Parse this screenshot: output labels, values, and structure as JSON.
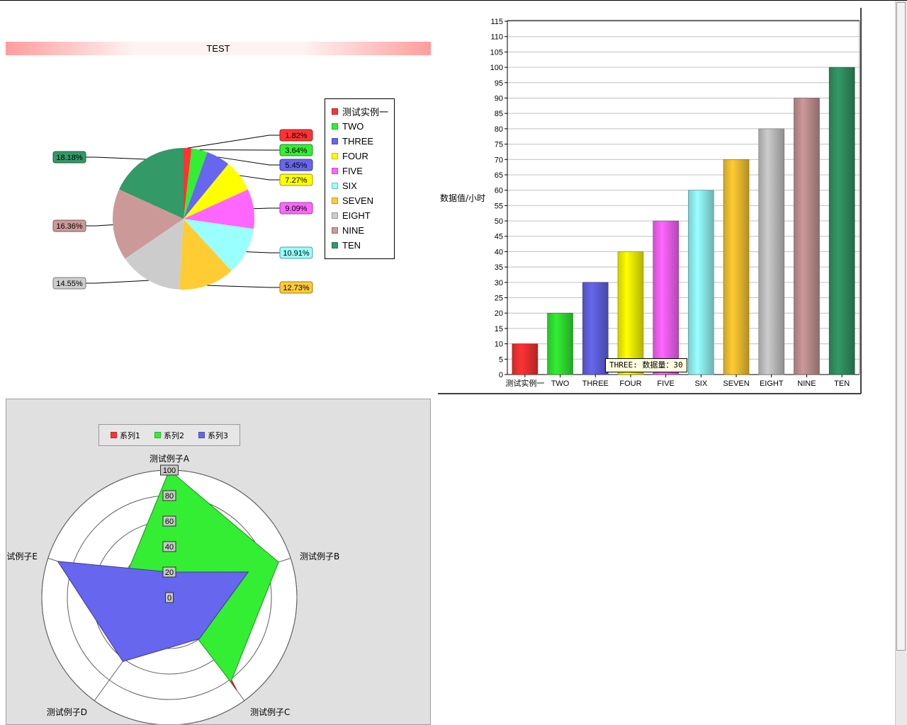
{
  "chart_data": [
    {
      "type": "pie",
      "title": "TEST",
      "legend_position": "right",
      "slices": [
        {
          "name": "测试实例一",
          "value": 1.82,
          "label": "1.82%",
          "color": "#ff3333"
        },
        {
          "name": "TWO",
          "value": 3.64,
          "label": "3.64%",
          "color": "#33ee33"
        },
        {
          "name": "THREE",
          "value": 5.45,
          "label": "5.45%",
          "color": "#6666ee"
        },
        {
          "name": "FOUR",
          "value": 7.27,
          "label": "7.27%",
          "color": "#ffff00"
        },
        {
          "name": "FIVE",
          "value": 9.09,
          "label": "9.09%",
          "color": "#ff66ff"
        },
        {
          "name": "SIX",
          "value": 10.91,
          "label": "10.91%",
          "color": "#99ffff"
        },
        {
          "name": "SEVEN",
          "value": 12.73,
          "label": "12.73%",
          "color": "#ffcc33"
        },
        {
          "name": "EIGHT",
          "value": 14.55,
          "label": "14.55%",
          "color": "#cccccc"
        },
        {
          "name": "NINE",
          "value": 16.36,
          "label": "16.36%",
          "color": "#cc9999"
        },
        {
          "name": "TEN",
          "value": 18.18,
          "label": "18.18%",
          "color": "#339966"
        }
      ]
    },
    {
      "type": "bar",
      "categories": [
        "测试实例一",
        "TWO",
        "THREE",
        "FOUR",
        "FIVE",
        "SIX",
        "SEVEN",
        "EIGHT",
        "NINE",
        "TEN"
      ],
      "values": [
        10,
        20,
        30,
        40,
        50,
        60,
        70,
        80,
        90,
        100
      ],
      "colors": [
        "#ff3333",
        "#33ee33",
        "#6666ee",
        "#ffff00",
        "#ff66ff",
        "#99ffff",
        "#ffcc33",
        "#cccccc",
        "#cc9999",
        "#339966"
      ],
      "ylabel": "数据值/小时",
      "ylim": [
        0,
        115
      ],
      "ytick_step": 5,
      "grid": true,
      "tooltip": "THREE: 数据量：30"
    },
    {
      "type": "radar",
      "axes": [
        "测试例子A",
        "测试例子B",
        "测试例子C",
        "测试例子D",
        "测试例子E"
      ],
      "rlim": [
        0,
        100
      ],
      "ticks": [
        "0",
        "20",
        "40",
        "60",
        "80",
        "100"
      ],
      "legend_position": "top",
      "series": [
        {
          "name": "系列1",
          "color": "#ff3333",
          "values": [
            2,
            15,
            90,
            0,
            0
          ]
        },
        {
          "name": "系列2",
          "color": "#33ee33",
          "values": [
            100,
            90,
            82,
            2,
            38
          ]
        },
        {
          "name": "系列3",
          "color": "#6666ee",
          "values": [
            20,
            65,
            40,
            62,
            92
          ]
        }
      ]
    }
  ]
}
